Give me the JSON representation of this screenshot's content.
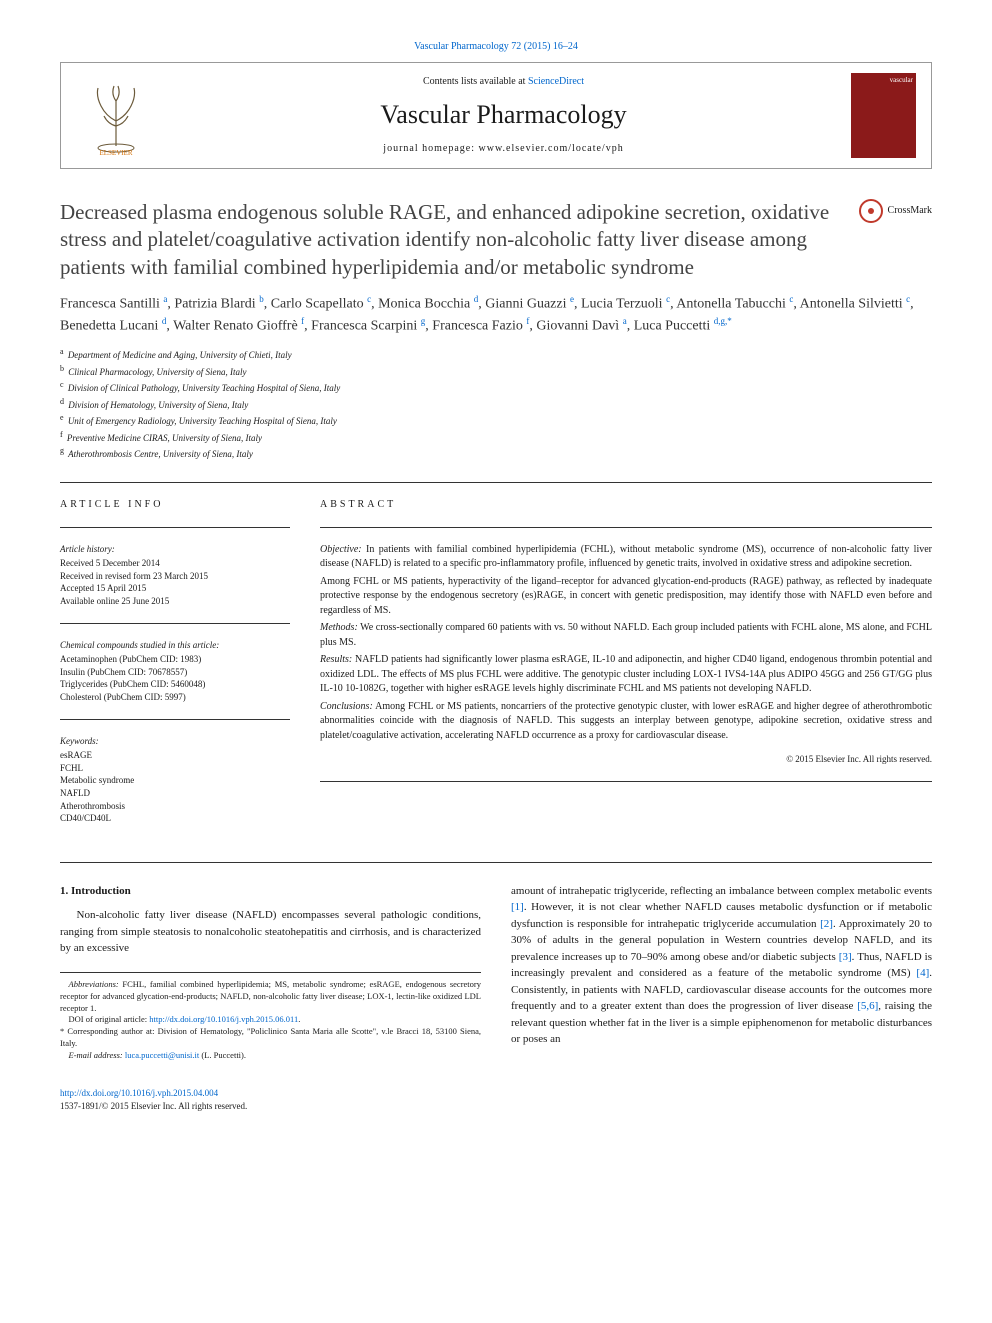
{
  "journal_ref_link": "Vascular Pharmacology 72 (2015) 16–24",
  "header": {
    "contents_prefix": "Contents lists available at ",
    "contents_link": "ScienceDirect",
    "journal_name": "Vascular Pharmacology",
    "homepage_prefix": "journal homepage: ",
    "homepage_url": "www.elsevier.com/locate/vph",
    "cover_label": "vascular"
  },
  "crossmark_label": "CrossMark",
  "title": "Decreased plasma endogenous soluble RAGE, and enhanced adipokine secretion, oxidative stress and platelet/coagulative activation identify non-alcoholic fatty liver disease among patients with familial combined hyperlipidemia and/or metabolic syndrome",
  "authors_html": "Francesca Santilli <sup>a</sup>, Patrizia Blardi <sup>b</sup>, Carlo Scapellato <sup>c</sup>, Monica Bocchia <sup>d</sup>, Gianni Guazzi <sup>e</sup>, Lucia Terzuoli <sup>c</sup>, Antonella Tabucchi <sup>c</sup>, Antonella Silvietti <sup>c</sup>, Benedetta Lucani <sup>d</sup>, Walter Renato Gioffrè <sup>f</sup>, Francesca Scarpini <sup>g</sup>, Francesca Fazio <sup>f</sup>, Giovanni Davì <sup>a</sup>, Luca Puccetti <sup>d,g,*</sup>",
  "affiliations": [
    {
      "sup": "a",
      "text": "Department of Medicine and Aging, University of Chieti, Italy"
    },
    {
      "sup": "b",
      "text": "Clinical Pharmacology, University of Siena, Italy"
    },
    {
      "sup": "c",
      "text": "Division of Clinical Pathology, University Teaching Hospital of Siena, Italy"
    },
    {
      "sup": "d",
      "text": "Division of Hematology, University of Siena, Italy"
    },
    {
      "sup": "e",
      "text": "Unit of Emergency Radiology, University Teaching Hospital of Siena, Italy"
    },
    {
      "sup": "f",
      "text": "Preventive Medicine CIRAS, University of Siena, Italy"
    },
    {
      "sup": "g",
      "text": "Atherothrombosis Centre, University of Siena, Italy"
    }
  ],
  "article_info": {
    "heading": "ARTICLE INFO",
    "history_label": "Article history:",
    "history": [
      "Received 5 December 2014",
      "Received in revised form 23 March 2015",
      "Accepted 15 April 2015",
      "Available online 25 June 2015"
    ],
    "compounds_label": "Chemical compounds studied in this article:",
    "compounds": [
      "Acetaminophen (PubChem CID: 1983)",
      "Insulin (PubChem CID: 70678557)",
      "Triglycerides (PubChem CID: 5460048)",
      "Cholesterol (PubChem CID: 5997)"
    ],
    "keywords_label": "Keywords:",
    "keywords": [
      "esRAGE",
      "FCHL",
      "Metabolic syndrome",
      "NAFLD",
      "Atherothrombosis",
      "CD40/CD40L"
    ]
  },
  "abstract": {
    "heading": "ABSTRACT",
    "objective_label": "Objective:",
    "objective": " In patients with familial combined hyperlipidemia (FCHL), without metabolic syndrome (MS), occurrence of non-alcoholic fatty liver disease (NAFLD) is related to a specific pro-inflammatory profile, influenced by genetic traits, involved in oxidative stress and adipokine secretion.",
    "objective_p2": "Among FCHL or MS patients, hyperactivity of the ligand–receptor for advanced glycation-end-products (RAGE) pathway, as reflected by inadequate protective response by the endogenous secretory (es)RAGE, in concert with genetic predisposition, may identify those with NAFLD even before and regardless of MS.",
    "methods_label": "Methods:",
    "methods": " We cross-sectionally compared 60 patients with vs. 50 without NAFLD. Each group included patients with FCHL alone, MS alone, and FCHL plus MS.",
    "results_label": "Results:",
    "results": " NAFLD patients had significantly lower plasma esRAGE, IL-10 and adiponectin, and higher CD40 ligand, endogenous thrombin potential and oxidized LDL. The effects of MS plus FCHL were additive. The genotypic cluster including LOX-1 IVS4-14A plus ADIPO 45GG and 256 GT/GG plus IL-10 10-1082G, together with higher esRAGE levels highly discriminate FCHL and MS patients not developing NAFLD.",
    "conclusions_label": "Conclusions:",
    "conclusions": " Among FCHL or MS patients, noncarriers of the protective genotypic cluster, with lower esRAGE and higher degree of atherothrombotic abnormalities coincide with the diagnosis of NAFLD. This suggests an interplay between genotype, adipokine secretion, oxidative stress and platelet/coagulative activation, accelerating NAFLD occurrence as a proxy for cardiovascular disease.",
    "copyright": "© 2015 Elsevier Inc. All rights reserved."
  },
  "body": {
    "intro_heading": "1. Introduction",
    "intro_p1": "Non-alcoholic fatty liver disease (NAFLD) encompasses several pathologic conditions, ranging from simple steatosis to nonalcoholic steatohepatitis and cirrhosis, and is characterized by an excessive",
    "col2_p1_pre": "amount of intrahepatic triglyceride, reflecting an imbalance between complex metabolic events ",
    "ref1": "[1]",
    "col2_p1_mid": ". However, it is not clear whether NAFLD causes metabolic dysfunction or if metabolic dysfunction is responsible for intrahepatic triglyceride accumulation ",
    "ref2": "[2]",
    "col2_p1_mid2": ". Approximately 20 to 30% of adults in the general population in Western countries develop NAFLD, and its prevalence increases up to 70–90% among obese and/or diabetic subjects ",
    "ref3": "[3]",
    "col2_p1_mid3": ". Thus, NAFLD is increasingly prevalent and considered as a feature of the metabolic syndrome (MS) ",
    "ref4": "[4]",
    "col2_p1_mid4": ". Consistently, in patients with NAFLD, cardiovascular disease accounts for the outcomes more frequently and to a greater extent than does the progression of liver disease ",
    "ref56": "[5,6]",
    "col2_p1_end": ", raising the relevant question whether fat in the liver is a simple epiphenomenon for metabolic disturbances or poses an"
  },
  "footnotes": {
    "abbrev_label": "Abbreviations:",
    "abbrev": " FCHL, familial combined hyperlipidemia; MS, metabolic syndrome; esRAGE, endogenous secretory receptor for advanced glycation-end-products; NAFLD, non-alcoholic fatty liver disease; LOX-1, lectin-like oxidized LDL receptor 1.",
    "doi_orig_label": "DOI of original article: ",
    "doi_orig": "http://dx.doi.org/10.1016/j.vph.2015.06.011",
    "doi_orig_suffix": ".",
    "corresp_label": "* ",
    "corresp": "Corresponding author at: Division of Hematology, \"Policlinico Santa Maria alle Scotte\", v.le Bracci 18, 53100 Siena, Italy.",
    "email_label": "E-mail address: ",
    "email": "luca.puccetti@unisi.it",
    "email_suffix": " (L. Puccetti)."
  },
  "footer": {
    "doi": "http://dx.doi.org/10.1016/j.vph.2015.04.004",
    "issn_copyright": "1537-1891/© 2015 Elsevier Inc. All rights reserved."
  },
  "colors": {
    "link": "#0066cc",
    "cover_bg": "#8b1a1a",
    "crossmark_ring": "#c0392b"
  }
}
